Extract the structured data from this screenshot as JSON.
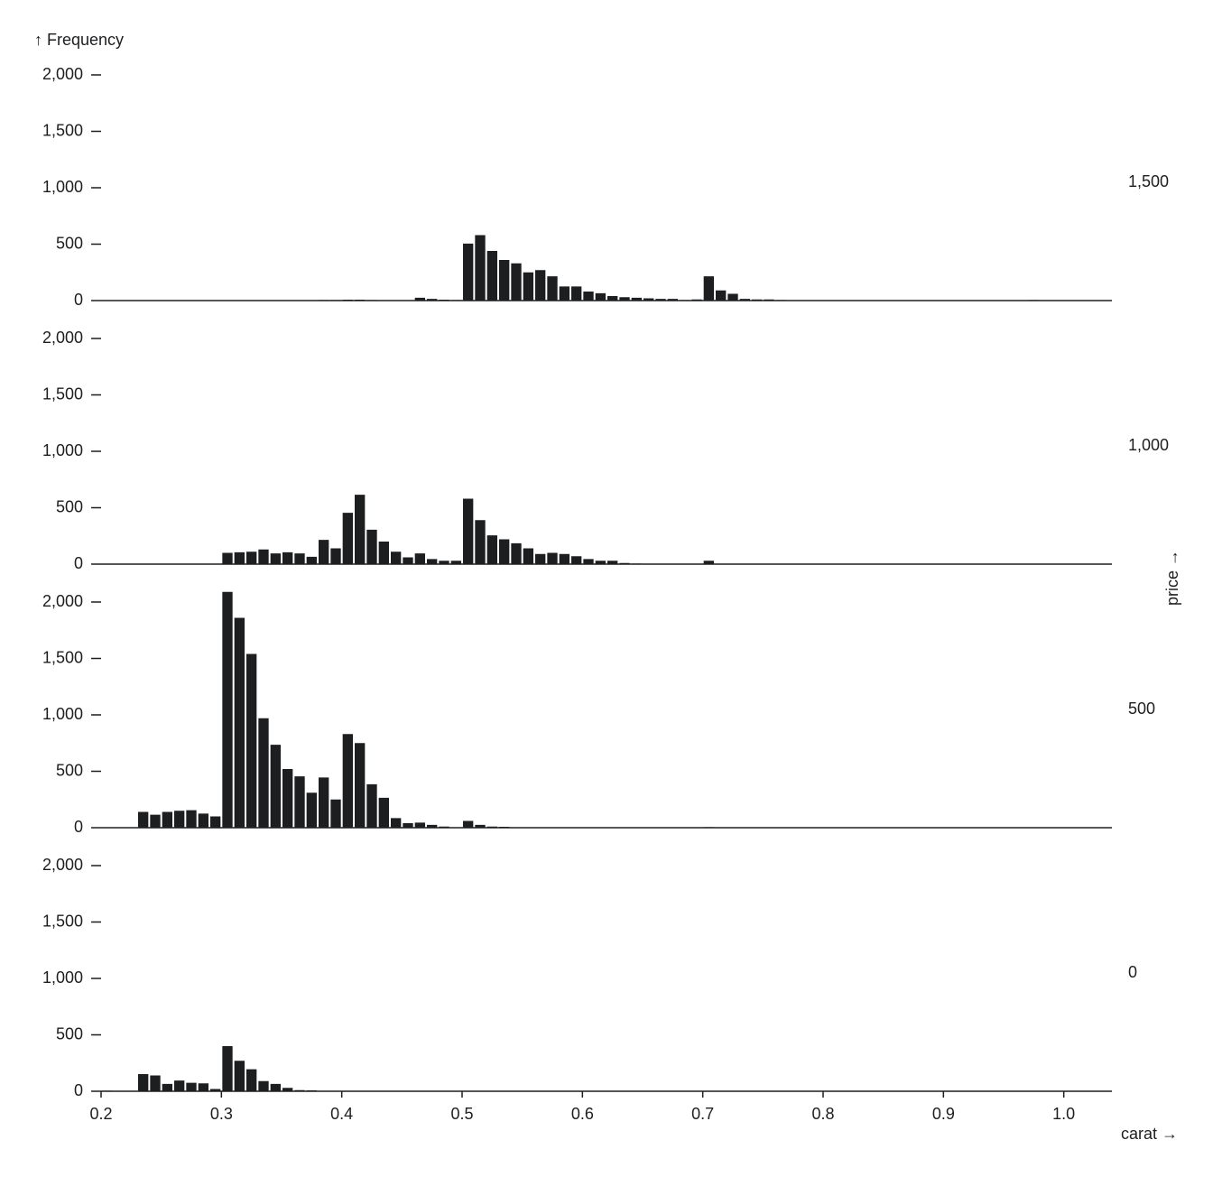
{
  "chart_data": {
    "type": "histogram",
    "y_label": "↑ Frequency",
    "x_label": "carat →",
    "facet_label": "price →",
    "color": "#1d1e20",
    "xlim": [
      0.2,
      1.04
    ],
    "ylim": [
      0,
      2300
    ],
    "xticks": [
      0.2,
      0.3,
      0.4,
      0.5,
      0.6,
      0.7,
      0.8,
      0.9,
      {
        "value": 1,
        "label": "1.0"
      }
    ],
    "yticks": [
      0,
      500,
      {
        "value": 1000,
        "label": "1,000"
      },
      {
        "value": 1500,
        "label": "1,500"
      },
      {
        "value": 2000,
        "label": "2,000"
      }
    ],
    "bins": [
      0.2,
      0.21,
      0.22,
      0.23,
      0.24,
      0.25,
      0.26,
      0.27,
      0.28,
      0.29,
      0.3,
      0.31,
      0.32,
      0.33,
      0.34,
      0.35,
      0.36,
      0.37,
      0.38,
      0.39,
      0.4,
      0.41,
      0.42,
      0.43,
      0.44,
      0.45,
      0.46,
      0.47,
      0.48,
      0.49,
      0.5,
      0.51,
      0.52,
      0.53,
      0.54,
      0.55,
      0.56,
      0.57,
      0.58,
      0.59,
      0.6,
      0.61,
      0.62,
      0.63,
      0.64,
      0.65,
      0.66,
      0.67,
      0.68,
      0.69,
      0.7,
      0.71,
      0.72,
      0.73,
      0.74,
      0.75,
      0.76,
      0.77,
      0.78,
      0.79,
      0.8,
      0.81,
      0.82,
      0.83,
      0.84,
      0.85,
      0.86,
      0.87,
      0.88,
      0.89,
      0.9,
      0.91,
      0.92,
      0.93,
      0.94,
      0.95,
      0.96,
      0.97,
      0.98,
      0.99,
      1,
      1.01,
      1.02,
      1.03,
      1.04
    ],
    "series": [
      {
        "name": "1,500",
        "values": [
          0,
          0,
          0,
          0,
          0,
          0,
          0,
          0,
          0,
          0,
          0,
          0,
          0,
          0,
          0,
          0,
          0,
          0,
          5,
          5,
          8,
          8,
          5,
          3,
          2,
          0,
          25,
          15,
          8,
          5,
          505,
          580,
          440,
          360,
          330,
          250,
          270,
          215,
          125,
          125,
          80,
          65,
          40,
          30,
          25,
          20,
          15,
          15,
          5,
          10,
          215,
          90,
          60,
          15,
          10,
          10,
          5,
          3,
          0,
          0,
          0,
          0,
          0,
          0,
          0,
          0,
          0,
          0,
          0,
          0,
          0,
          0,
          0,
          0,
          0,
          0,
          0,
          5,
          0,
          0,
          0,
          0,
          0,
          0
        ]
      },
      {
        "name": "1,000",
        "values": [
          0,
          0,
          0,
          0,
          0,
          0,
          0,
          0,
          0,
          0,
          100,
          105,
          110,
          130,
          95,
          105,
          95,
          65,
          215,
          140,
          455,
          615,
          305,
          200,
          110,
          60,
          95,
          45,
          30,
          30,
          580,
          390,
          255,
          220,
          185,
          140,
          90,
          100,
          90,
          70,
          45,
          30,
          30,
          10,
          5,
          3,
          2,
          2,
          2,
          2,
          30,
          3,
          0,
          0,
          0,
          0,
          0,
          0,
          0,
          0,
          0,
          0,
          0,
          0,
          0,
          0,
          0,
          0,
          0,
          0,
          0,
          0,
          0,
          0,
          0,
          0,
          0,
          0,
          0,
          0,
          0,
          0,
          0,
          0
        ]
      },
      {
        "name": "500",
        "values": [
          0,
          0,
          0,
          140,
          115,
          140,
          150,
          155,
          125,
          100,
          2090,
          1860,
          1540,
          970,
          735,
          520,
          455,
          310,
          445,
          250,
          830,
          750,
          385,
          265,
          85,
          40,
          45,
          25,
          10,
          3,
          60,
          25,
          10,
          8,
          0,
          0,
          0,
          0,
          0,
          0,
          0,
          0,
          0,
          0,
          0,
          0,
          0,
          0,
          0,
          0,
          5,
          0,
          0,
          0,
          0,
          0,
          0,
          0,
          0,
          0,
          0,
          0,
          0,
          0,
          0,
          0,
          0,
          0,
          0,
          0,
          0,
          0,
          0,
          0,
          0,
          0,
          0,
          0,
          0,
          0,
          0,
          0,
          0,
          0
        ]
      },
      {
        "name": "0",
        "values": [
          5,
          3,
          0,
          152,
          140,
          65,
          95,
          75,
          70,
          20,
          400,
          270,
          195,
          90,
          65,
          30,
          10,
          8,
          0,
          0,
          0,
          0,
          0,
          0,
          0,
          0,
          0,
          0,
          0,
          0,
          0,
          0,
          0,
          0,
          0,
          0,
          0,
          0,
          0,
          0,
          0,
          0,
          0,
          0,
          0,
          0,
          0,
          0,
          0,
          0,
          0,
          0,
          0,
          0,
          0,
          0,
          0,
          0,
          0,
          0,
          0,
          0,
          0,
          0,
          0,
          0,
          0,
          0,
          0,
          0,
          0,
          0,
          0,
          0,
          0,
          0,
          0,
          0,
          0,
          0,
          0,
          0,
          0,
          0
        ]
      }
    ]
  }
}
